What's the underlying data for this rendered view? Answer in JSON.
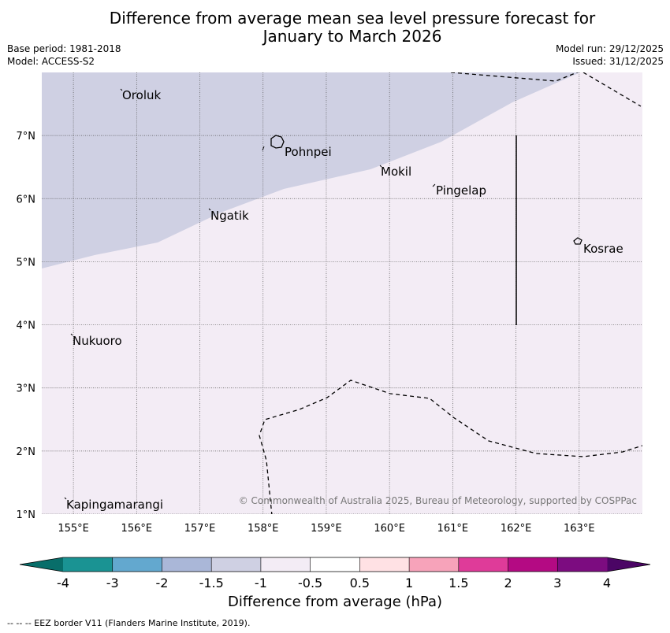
{
  "title": {
    "line1": "Difference from average mean sea level pressure forecast for",
    "line2": "January to March 2026"
  },
  "meta": {
    "base_period": "Base period: 1981-2018",
    "model": "Model: ACCESS-S2",
    "model_run": "Model run: 29/12/2025",
    "issued": "Issued: 31/12/2025"
  },
  "map": {
    "lon_range": [
      154.5,
      164.0
    ],
    "lat_range": [
      1.0,
      8.0
    ],
    "lon_ticks": [
      "155°E",
      "156°E",
      "157°E",
      "158°E",
      "159°E",
      "160°E",
      "161°E",
      "162°E",
      "163°E"
    ],
    "lat_ticks": [
      "1°N",
      "2°N",
      "3°N",
      "4°N",
      "5°N",
      "6°N",
      "7°N"
    ],
    "fill_colors": {
      "upper_region": "#cfd0e3",
      "lower_region": "#f3ecf5"
    },
    "islands": [
      {
        "name": "Oroluk",
        "lon": 155.7,
        "lat": 7.7
      },
      {
        "name": "Pohnpei",
        "lon": 158.2,
        "lat": 6.9
      },
      {
        "name": "Mokil",
        "lon": 159.8,
        "lat": 6.5
      },
      {
        "name": "Pingelap",
        "lon": 160.7,
        "lat": 6.2
      },
      {
        "name": "Ngatik",
        "lon": 157.1,
        "lat": 5.8
      },
      {
        "name": "Kosrae",
        "lon": 163.0,
        "lat": 5.3
      },
      {
        "name": "Nukuoro",
        "lon": 155.0,
        "lat": 3.8
      },
      {
        "name": "Kapingamarangi",
        "lon": 154.9,
        "lat": 1.2
      }
    ],
    "copyright": "© Commonwealth of Australia 2025, Bureau of Meteorology, supported by COSPPac"
  },
  "colorbar": {
    "ticks": [
      "-4",
      "-3",
      "-2",
      "-1.5",
      "-1",
      "-0.5",
      "0.5",
      "1",
      "1.5",
      "2",
      "3",
      "4"
    ],
    "colors": [
      "#1a9393",
      "#63a8cf",
      "#aab7d8",
      "#cfd0e3",
      "#f3ecf5",
      "#ffffff",
      "#ffe1e4",
      "#f7a3ba",
      "#df3b99",
      "#b40a83",
      "#7c0c80"
    ],
    "extend_low": "#086e6a",
    "extend_high": "#4b0565",
    "label": "Difference from average (hPa)"
  },
  "footer": "-- -- -- EEZ border V11 (Flanders Marine Institute, 2019)."
}
